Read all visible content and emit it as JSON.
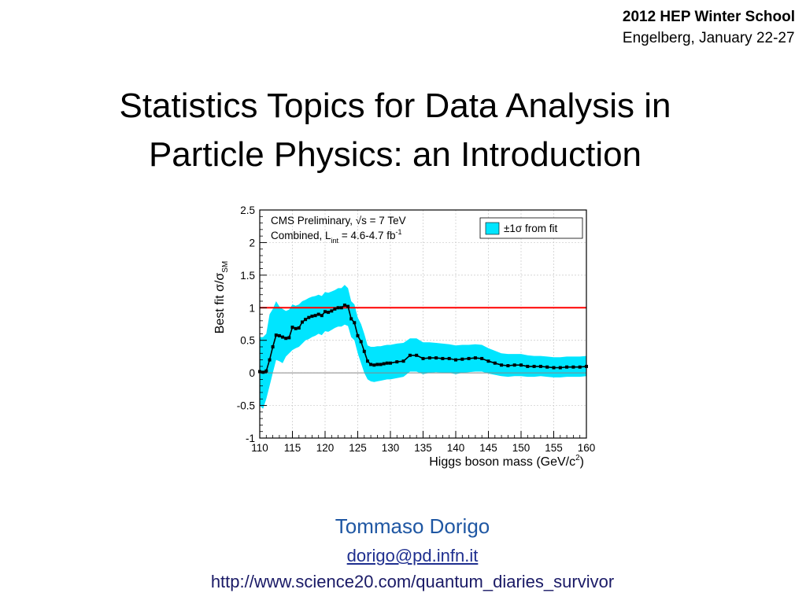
{
  "header": {
    "school": "2012 HEP Winter School",
    "place_date": "Engelberg, January 22-27"
  },
  "title": {
    "line1": "Statistics Topics for Data Analysis in",
    "line2": "Particle Physics: an Introduction"
  },
  "chart_data": {
    "type": "line",
    "title": "",
    "xlabel": "Higgs boson mass (GeV/c",
    "xlabel_sup": "2",
    "xlabel_end": ")",
    "ylabel": "Best fit σ/σ",
    "ylabel_sub": "SM",
    "xlim": [
      110,
      160
    ],
    "ylim": [
      -1,
      2.5
    ],
    "xticks": [
      "110",
      "115",
      "120",
      "125",
      "130",
      "135",
      "140",
      "145",
      "150",
      "155",
      "160"
    ],
    "yticks": [
      "-1",
      "-0.5",
      "0",
      "0.5",
      "1",
      "1.5",
      "2",
      "2.5"
    ],
    "grid": true,
    "annotation_line1": "CMS Preliminary, √s = 7 TeV",
    "annotation_line2_pre": "Combined, L",
    "annotation_line2_sub": "int",
    "annotation_line2_post": " = 4.6-4.7 fb",
    "annotation_line2_sup": "-1",
    "legend": {
      "label": "±1σ from fit",
      "position": "top-right",
      "color": "#00e5ff"
    },
    "reference_line": {
      "y": 1.0,
      "color": "#ff0000"
    },
    "zero_line": {
      "y": 0.0,
      "color": "#888888"
    },
    "band_color": "#00e5ff",
    "series": [
      {
        "x": [
          110,
          110.5,
          111,
          111.5,
          112,
          112.5,
          113,
          113.5,
          114,
          114.5,
          115,
          115.5,
          116,
          116.5,
          117,
          117.5,
          118,
          118.5,
          119,
          119.5,
          120,
          120.5,
          121,
          121.5,
          122,
          122.5,
          123,
          123.5,
          124,
          124.5,
          125,
          125.5,
          126,
          126.5,
          127,
          127.5,
          128,
          128.5,
          129,
          129.5,
          130,
          131,
          132,
          133,
          134,
          135,
          136,
          137,
          138,
          139,
          140,
          141,
          142,
          143,
          144,
          145,
          146,
          147,
          148,
          149,
          150,
          151,
          152,
          153,
          154,
          155,
          156,
          157,
          158,
          159,
          160
        ],
        "y": [
          0.02,
          0.01,
          0.03,
          0.2,
          0.4,
          0.58,
          0.57,
          0.55,
          0.53,
          0.54,
          0.7,
          0.68,
          0.69,
          0.78,
          0.82,
          0.85,
          0.87,
          0.88,
          0.9,
          0.88,
          0.94,
          0.93,
          0.95,
          0.98,
          1.0,
          1.0,
          1.04,
          1.02,
          0.83,
          0.77,
          0.57,
          0.48,
          0.33,
          0.18,
          0.13,
          0.12,
          0.13,
          0.13,
          0.14,
          0.15,
          0.15,
          0.17,
          0.18,
          0.27,
          0.27,
          0.22,
          0.23,
          0.23,
          0.22,
          0.22,
          0.2,
          0.21,
          0.22,
          0.23,
          0.22,
          0.18,
          0.15,
          0.12,
          0.11,
          0.12,
          0.12,
          0.1,
          0.1,
          0.1,
          0.09,
          0.08,
          0.08,
          0.09,
          0.09,
          0.09,
          0.1
        ],
        "lo": [
          -0.5,
          -0.55,
          -0.4,
          -0.2,
          0.0,
          0.2,
          0.18,
          0.15,
          0.25,
          0.3,
          0.35,
          0.38,
          0.4,
          0.45,
          0.5,
          0.52,
          0.55,
          0.57,
          0.6,
          0.58,
          0.64,
          0.63,
          0.66,
          0.69,
          0.71,
          0.71,
          0.74,
          0.72,
          0.55,
          0.5,
          0.3,
          0.15,
          0.0,
          -0.1,
          -0.13,
          -0.14,
          -0.13,
          -0.12,
          -0.11,
          -0.1,
          -0.1,
          -0.08,
          -0.06,
          0.02,
          0.02,
          -0.02,
          0.0,
          0.01,
          0.0,
          0.0,
          -0.02,
          0.0,
          0.01,
          0.02,
          0.02,
          -0.01,
          -0.03,
          -0.05,
          -0.06,
          -0.05,
          -0.05,
          -0.06,
          -0.06,
          -0.05,
          -0.06,
          -0.07,
          -0.07,
          -0.06,
          -0.06,
          -0.06,
          -0.05
        ],
        "hi": [
          0.55,
          0.55,
          0.6,
          0.9,
          0.98,
          1.1,
          1.02,
          0.98,
          0.95,
          0.97,
          1.05,
          1.03,
          1.05,
          1.1,
          1.12,
          1.15,
          1.17,
          1.18,
          1.2,
          1.18,
          1.24,
          1.23,
          1.25,
          1.27,
          1.3,
          1.3,
          1.35,
          1.3,
          1.1,
          1.05,
          0.85,
          0.75,
          0.6,
          0.42,
          0.4,
          0.4,
          0.41,
          0.41,
          0.42,
          0.43,
          0.43,
          0.45,
          0.46,
          0.53,
          0.53,
          0.47,
          0.47,
          0.46,
          0.45,
          0.44,
          0.42,
          0.43,
          0.43,
          0.44,
          0.43,
          0.38,
          0.34,
          0.3,
          0.29,
          0.29,
          0.29,
          0.27,
          0.26,
          0.26,
          0.25,
          0.24,
          0.24,
          0.25,
          0.25,
          0.25,
          0.26
        ]
      }
    ]
  },
  "author": {
    "name": "Tommaso Dorigo",
    "email": "dorigo@pd.infn.it",
    "url": "http://www.science20.com/quantum_diaries_survivor"
  }
}
